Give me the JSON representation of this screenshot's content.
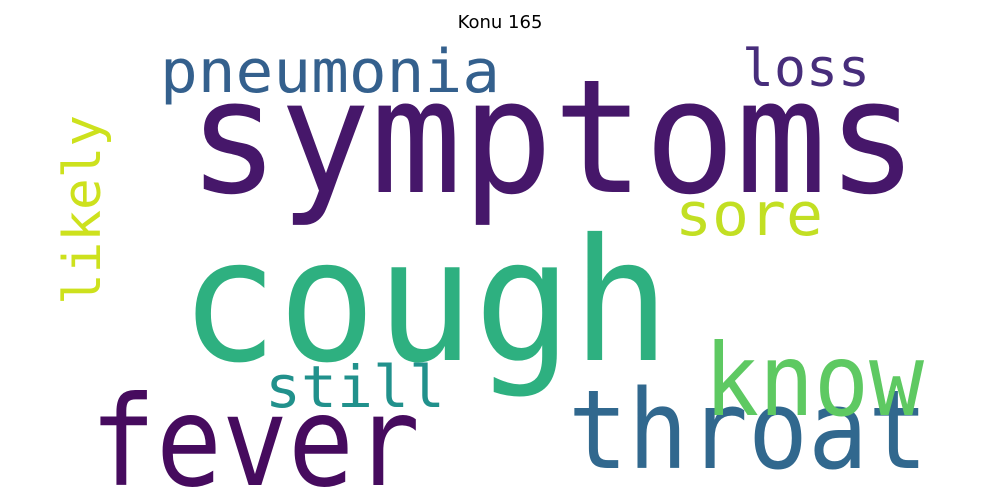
{
  "title": "Konu 165",
  "words": [
    {
      "text": "symptoms",
      "color": "#46176a"
    },
    {
      "text": "cough",
      "color": "#2eb080"
    },
    {
      "text": "fever",
      "color": "#460b5e"
    },
    {
      "text": "throat",
      "color": "#31688e"
    },
    {
      "text": "know",
      "color": "#5ec962"
    },
    {
      "text": "pneumonia",
      "color": "#34608d"
    },
    {
      "text": "loss",
      "color": "#472d7b"
    },
    {
      "text": "sore",
      "color": "#c2df23"
    },
    {
      "text": "likely",
      "color": "#cde11d"
    },
    {
      "text": "still",
      "color": "#21918c"
    }
  ]
}
